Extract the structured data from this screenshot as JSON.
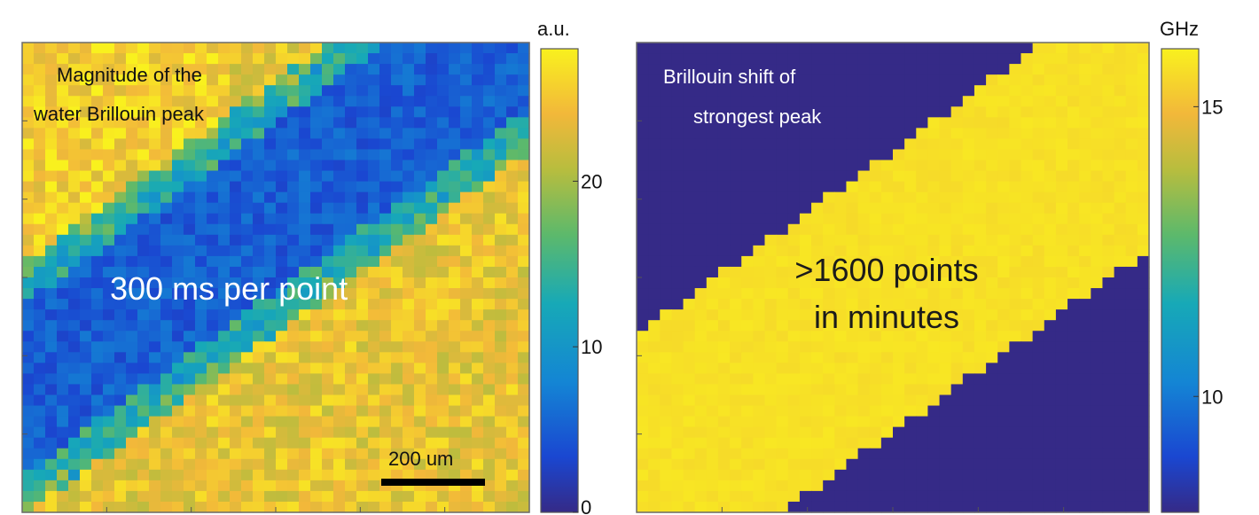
{
  "chart_data": [
    {
      "type": "heatmap",
      "title": "",
      "annotation_lines": [
        "Magnitude of the",
        "water Brillouin peak"
      ],
      "overlay_text": "300 ms per point",
      "scalebar_label": "200 um",
      "colorbar": {
        "unit": "a.u.",
        "ticks": [
          "20",
          "10",
          "0"
        ],
        "tick_values": [
          20,
          10,
          0
        ],
        "range": [
          0,
          28
        ]
      },
      "grid_size": [
        44,
        44
      ],
      "description": "diagonal band from bottom-left to top-right",
      "band_value": 3,
      "background_value": 24,
      "colormap": "parula"
    },
    {
      "type": "heatmap",
      "title": "",
      "annotation_lines": [
        "Brillouin shift of",
        "strongest peak"
      ],
      "overlay_text_lines": [
        ">1600 points",
        "in minutes"
      ],
      "colorbar": {
        "unit": "GHz",
        "ticks": [
          "15",
          "10"
        ],
        "tick_values": [
          15,
          10
        ],
        "range": [
          8,
          16
        ]
      },
      "grid_size": [
        44,
        44
      ],
      "band_value": 15.8,
      "background_value": 8,
      "colormap": "parula"
    }
  ],
  "colors": {
    "parula_low": "#352a87",
    "parula_mid_blue": "#1e6fd9",
    "parula_teal": "#22a6a0",
    "parula_green": "#8dbe4a",
    "parula_orange": "#f2b83a",
    "parula_high": "#f9e11e",
    "scalebar": "#000000",
    "annotation_dark": "#111111",
    "annotation_light": "#ffffff"
  }
}
